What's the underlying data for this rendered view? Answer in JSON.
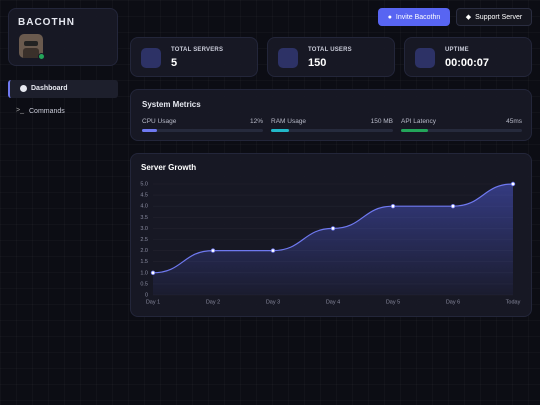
{
  "sidebar": {
    "bot_name": "BACOTHN",
    "nav": [
      "Dashboard",
      "Commands"
    ]
  },
  "header": {
    "buttons": [
      "Invite Bacothn",
      "Support Server"
    ]
  },
  "stats": [
    {
      "label": "TOTAL SERVERS",
      "value": "5"
    },
    {
      "label": "TOTAL USERS",
      "value": "150"
    },
    {
      "label": "UPTIME",
      "value": "00:00:07"
    }
  ],
  "system_metrics": {
    "title": "System Metrics",
    "items": [
      {
        "label": "CPU Usage",
        "value": "12%"
      },
      {
        "label": "RAM Usage",
        "value": "150 MB"
      },
      {
        "label": "API Latency",
        "value": "45ms"
      }
    ]
  },
  "chart_data": {
    "type": "line",
    "title": "Server Growth",
    "categories": [
      "Day 1",
      "Day 2",
      "Day 3",
      "Day 4",
      "Day 5",
      "Day 6",
      "Today"
    ],
    "values": [
      1,
      2,
      2,
      3,
      4,
      4,
      5
    ],
    "color": "#6f79f0",
    "ylim": [
      0,
      5
    ],
    "yticks": [
      0,
      {
        "value": 0.5,
        "label": "0.5"
      },
      {
        "value": 1,
        "label": "1.0"
      },
      {
        "value": 1.5,
        "label": "1.5"
      },
      {
        "value": 2,
        "label": "2.0"
      },
      {
        "value": 2.5,
        "label": "2.5"
      },
      {
        "value": 3,
        "label": "3.0"
      },
      {
        "value": 3.5,
        "label": "3.5"
      },
      {
        "value": 4,
        "label": "4.0"
      },
      {
        "value": 4.5,
        "label": "4.5"
      },
      {
        "value": 5,
        "label": "5.0"
      }
    ],
    "grid": true
  }
}
